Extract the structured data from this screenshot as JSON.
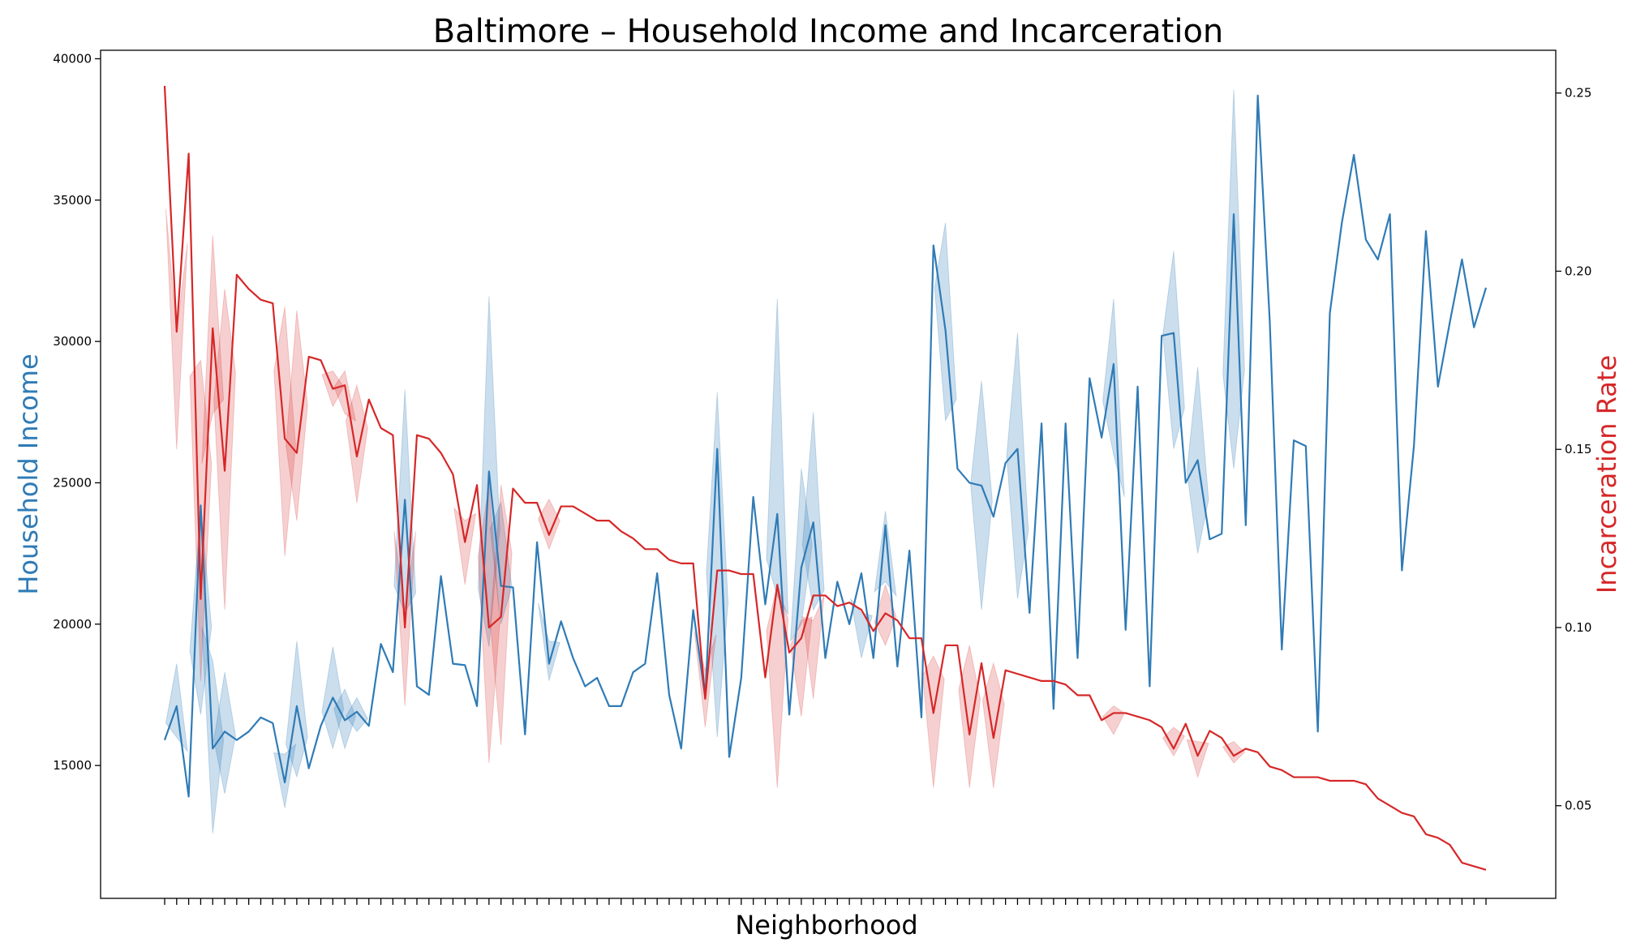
{
  "chart_data": {
    "type": "line",
    "title": "Baltimore – Household Income and Incarceration",
    "xlabel": "Neighborhood",
    "grid": false,
    "x_tick_count": 111,
    "x_tick_labels_visible": false,
    "left_axis": {
      "label": "Household Income",
      "color": "#2f7bb6",
      "ylim": [
        10300,
        40300
      ],
      "ticks": [
        15000,
        20000,
        25000,
        30000,
        35000,
        40000
      ]
    },
    "right_axis": {
      "label": "Incarceration Rate",
      "color": "#d62728",
      "ylim": [
        0.024,
        0.262
      ],
      "ticks": [
        0.05,
        0.1,
        0.15,
        0.2,
        0.25
      ]
    },
    "series": [
      {
        "axis": "left",
        "color": "#2f7bb6",
        "band_color": "#2f7bb6",
        "band_opacity": 0.25,
        "values": [
          15900,
          17100,
          13900,
          24200,
          15600,
          16200,
          15900,
          16200,
          16700,
          16500,
          14400,
          17100,
          14900,
          16400,
          17400,
          16600,
          16900,
          16400,
          19300,
          18300,
          24400,
          17800,
          17500,
          21700,
          18600,
          18550,
          17100,
          25400,
          21350,
          21300,
          16100,
          22900,
          18600,
          20100,
          18800,
          17800,
          18100,
          17100,
          17100,
          18300,
          18600,
          21800,
          17500,
          15600,
          20500,
          17400,
          26200,
          15300,
          18100,
          24500,
          20700,
          23900,
          16800,
          22000,
          23600,
          18800,
          21500,
          20000,
          21800,
          18800,
          23500,
          18500,
          22600,
          16700,
          33400,
          30400,
          25500,
          25000,
          24900,
          23800,
          25700,
          26200,
          20400,
          27100,
          17000,
          27100,
          18800,
          28700,
          26600,
          29200,
          19800,
          28400,
          17800,
          30200,
          30300,
          25000,
          25800,
          23000,
          23200,
          34500,
          23500,
          38700,
          30700,
          19100,
          26500,
          26300,
          16200,
          31000,
          34200,
          36600,
          33600,
          32900,
          34500,
          21900,
          26300,
          33900,
          28400,
          30700,
          32900,
          30500,
          31900
        ],
        "bands": [
          {
            "index": 1,
            "low": 16000,
            "high": 18600
          },
          {
            "index": 3,
            "low": 16800,
            "high": 24200
          },
          {
            "index": 4,
            "low": 12600,
            "high": 18700
          },
          {
            "index": 5,
            "low": 14000,
            "high": 18300
          },
          {
            "index": 10,
            "low": 13500,
            "high": 15400
          },
          {
            "index": 11,
            "low": 14600,
            "high": 19400
          },
          {
            "index": 14,
            "low": 15600,
            "high": 19200
          },
          {
            "index": 15,
            "low": 15600,
            "high": 17700
          },
          {
            "index": 16,
            "low": 16200,
            "high": 17400
          },
          {
            "index": 20,
            "low": 20400,
            "high": 28300
          },
          {
            "index": 27,
            "low": 19200,
            "high": 31600
          },
          {
            "index": 28,
            "low": 20000,
            "high": 24300
          },
          {
            "index": 32,
            "low": 18000,
            "high": 19400
          },
          {
            "index": 46,
            "low": 16000,
            "high": 28200
          },
          {
            "index": 51,
            "low": 21000,
            "high": 31500
          },
          {
            "index": 53,
            "low": 20000,
            "high": 25500
          },
          {
            "index": 54,
            "low": 20500,
            "high": 27500
          },
          {
            "index": 58,
            "low": 18800,
            "high": 20400
          },
          {
            "index": 60,
            "low": 21500,
            "high": 24000
          },
          {
            "index": 65,
            "low": 27200,
            "high": 34200
          },
          {
            "index": 68,
            "low": 20500,
            "high": 28600
          },
          {
            "index": 71,
            "low": 20900,
            "high": 30300
          },
          {
            "index": 79,
            "low": 26000,
            "high": 31500
          },
          {
            "index": 84,
            "low": 26200,
            "high": 33200
          },
          {
            "index": 86,
            "low": 22500,
            "high": 29100
          },
          {
            "index": 89,
            "low": 25500,
            "high": 38900
          }
        ]
      },
      {
        "axis": "right",
        "color": "#d62728",
        "band_color": "#d62728",
        "band_opacity": 0.22,
        "values": [
          0.252,
          0.183,
          0.233,
          0.108,
          0.184,
          0.144,
          0.199,
          0.195,
          0.192,
          0.191,
          0.153,
          0.149,
          0.176,
          0.175,
          0.167,
          0.168,
          0.148,
          0.164,
          0.156,
          0.154,
          0.1,
          0.154,
          0.153,
          0.149,
          0.143,
          0.124,
          0.14,
          0.1,
          0.103,
          0.139,
          0.135,
          0.135,
          0.126,
          0.134,
          0.134,
          0.132,
          0.13,
          0.13,
          0.127,
          0.125,
          0.122,
          0.122,
          0.119,
          0.118,
          0.118,
          0.08,
          0.116,
          0.116,
          0.115,
          0.115,
          0.086,
          0.112,
          0.093,
          0.097,
          0.109,
          0.109,
          0.106,
          0.107,
          0.105,
          0.099,
          0.104,
          0.102,
          0.097,
          0.097,
          0.076,
          0.095,
          0.095,
          0.07,
          0.09,
          0.069,
          0.088,
          0.087,
          0.086,
          0.085,
          0.085,
          0.084,
          0.081,
          0.081,
          0.074,
          0.076,
          0.076,
          0.075,
          0.074,
          0.072,
          0.066,
          0.073,
          0.064,
          0.071,
          0.069,
          0.064,
          0.066,
          0.065,
          0.061,
          0.06,
          0.058,
          0.058,
          0.058,
          0.057,
          0.057,
          0.057,
          0.056,
          0.052,
          0.05,
          0.048,
          0.047,
          0.042,
          0.041,
          0.039,
          0.034,
          0.033,
          0.032
        ],
        "bands": [
          {
            "index": 1,
            "low": 0.15,
            "high": 0.183
          },
          {
            "index": 3,
            "low": 0.085,
            "high": 0.175
          },
          {
            "index": 4,
            "low": 0.16,
            "high": 0.21
          },
          {
            "index": 5,
            "low": 0.105,
            "high": 0.195
          },
          {
            "index": 10,
            "low": 0.12,
            "high": 0.19
          },
          {
            "index": 11,
            "low": 0.13,
            "high": 0.189
          },
          {
            "index": 14,
            "low": 0.162,
            "high": 0.172
          },
          {
            "index": 15,
            "low": 0.16,
            "high": 0.172
          },
          {
            "index": 16,
            "low": 0.135,
            "high": 0.168
          },
          {
            "index": 20,
            "low": 0.078,
            "high": 0.105
          },
          {
            "index": 25,
            "low": 0.112,
            "high": 0.13
          },
          {
            "index": 27,
            "low": 0.062,
            "high": 0.14
          },
          {
            "index": 28,
            "low": 0.067,
            "high": 0.14
          },
          {
            "index": 32,
            "low": 0.122,
            "high": 0.136
          },
          {
            "index": 45,
            "low": 0.072,
            "high": 0.088
          },
          {
            "index": 51,
            "low": 0.055,
            "high": 0.112
          },
          {
            "index": 53,
            "low": 0.075,
            "high": 0.102
          },
          {
            "index": 54,
            "low": 0.08,
            "high": 0.102
          },
          {
            "index": 60,
            "low": 0.095,
            "high": 0.112
          },
          {
            "index": 64,
            "low": 0.055,
            "high": 0.092
          },
          {
            "index": 67,
            "low": 0.055,
            "high": 0.095
          },
          {
            "index": 69,
            "low": 0.055,
            "high": 0.09
          },
          {
            "index": 79,
            "low": 0.07,
            "high": 0.078
          },
          {
            "index": 84,
            "low": 0.064,
            "high": 0.072
          },
          {
            "index": 86,
            "low": 0.058,
            "high": 0.068
          },
          {
            "index": 89,
            "low": 0.062,
            "high": 0.068
          }
        ]
      }
    ]
  }
}
